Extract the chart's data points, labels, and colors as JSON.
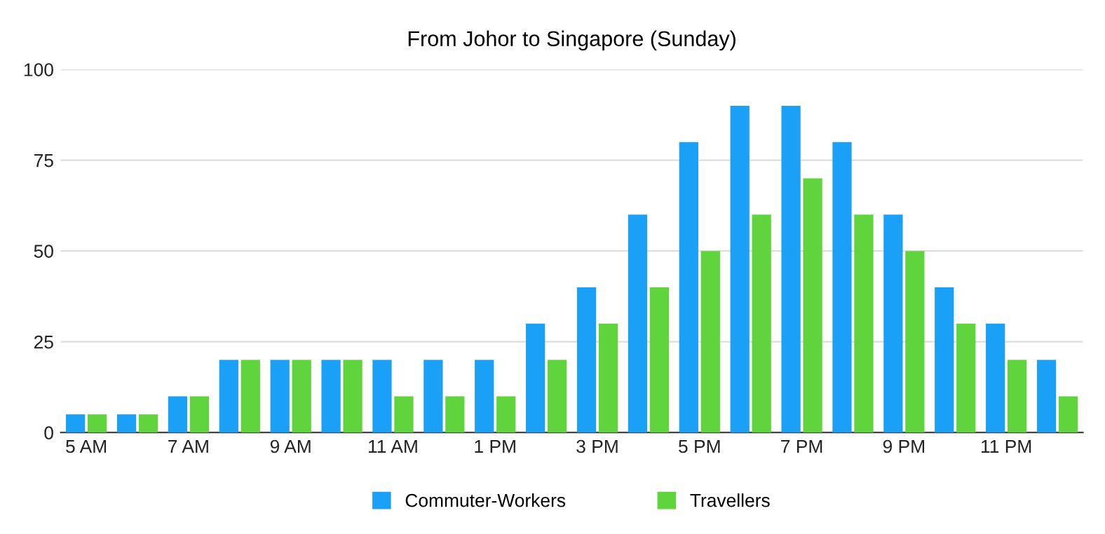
{
  "chart_data": {
    "type": "bar",
    "title": "From Johor to Singapore (Sunday)",
    "categories": [
      "5 AM",
      null,
      "7 AM",
      null,
      "9 AM",
      null,
      "11 AM",
      null,
      "1 PM",
      null,
      "3 PM",
      null,
      "5 PM",
      null,
      "7 PM",
      null,
      "9 PM",
      null,
      "11 PM",
      null
    ],
    "series": [
      {
        "name": "Commuter-Workers",
        "color": "#1aa1f7",
        "values": [
          5,
          5,
          10,
          20,
          20,
          20,
          20,
          20,
          20,
          30,
          40,
          60,
          80,
          90,
          90,
          80,
          60,
          40,
          30,
          20
        ]
      },
      {
        "name": "Travellers",
        "color": "#5fd43c",
        "values": [
          5,
          5,
          10,
          20,
          20,
          20,
          10,
          10,
          10,
          20,
          30,
          40,
          50,
          60,
          70,
          60,
          50,
          30,
          20,
          10
        ]
      }
    ],
    "ylim": [
      0,
      100
    ],
    "yticks": [
      0,
      25,
      50,
      75,
      100
    ],
    "grid": "y",
    "legend": "bottom"
  }
}
